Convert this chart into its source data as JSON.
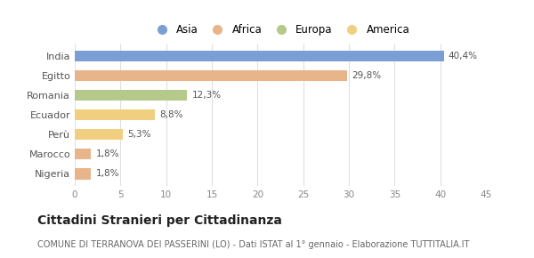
{
  "categories": [
    "India",
    "Egitto",
    "Romania",
    "Ecuador",
    "Perù",
    "Marocco",
    "Nigeria"
  ],
  "values": [
    40.4,
    29.8,
    12.3,
    8.8,
    5.3,
    1.8,
    1.8
  ],
  "labels": [
    "40,4%",
    "29,8%",
    "12,3%",
    "8,8%",
    "5,3%",
    "1,8%",
    "1,8%"
  ],
  "colors": [
    "#7b9fd4",
    "#e8b48a",
    "#b5c98a",
    "#f0d080",
    "#f0d080",
    "#e8b48a",
    "#e8b48a"
  ],
  "legend_items": [
    {
      "label": "Asia",
      "color": "#7b9fd4"
    },
    {
      "label": "Africa",
      "color": "#e8b48a"
    },
    {
      "label": "Europa",
      "color": "#b5c98a"
    },
    {
      "label": "America",
      "color": "#f0d080"
    }
  ],
  "xlim": [
    0,
    45
  ],
  "xticks": [
    0,
    5,
    10,
    15,
    20,
    25,
    30,
    35,
    40,
    45
  ],
  "title": "Cittadini Stranieri per Cittadinanza",
  "subtitle": "COMUNE DI TERRANOVA DEI PASSERINI (LO) - Dati ISTAT al 1° gennaio - Elaborazione TUTTITALIA.IT",
  "title_fontsize": 10,
  "subtitle_fontsize": 7,
  "background_color": "#ffffff"
}
